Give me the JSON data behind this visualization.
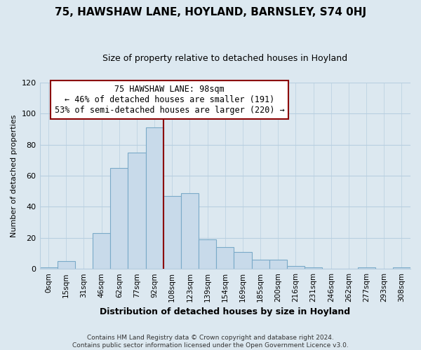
{
  "title": "75, HAWSHAW LANE, HOYLAND, BARNSLEY, S74 0HJ",
  "subtitle": "Size of property relative to detached houses in Hoyland",
  "xlabel": "Distribution of detached houses by size in Hoyland",
  "ylabel": "Number of detached properties",
  "bin_labels": [
    "0sqm",
    "15sqm",
    "31sqm",
    "46sqm",
    "62sqm",
    "77sqm",
    "92sqm",
    "108sqm",
    "123sqm",
    "139sqm",
    "154sqm",
    "169sqm",
    "185sqm",
    "200sqm",
    "216sqm",
    "231sqm",
    "246sqm",
    "262sqm",
    "277sqm",
    "293sqm",
    "308sqm"
  ],
  "bar_heights": [
    1,
    5,
    0,
    23,
    65,
    75,
    91,
    47,
    49,
    19,
    14,
    11,
    6,
    6,
    2,
    1,
    0,
    0,
    1,
    0,
    1
  ],
  "bar_color": "#c8daea",
  "bar_edge_color": "#7aaac8",
  "property_line_label": "75 HAWSHAW LANE: 98sqm",
  "annotation_line1": "← 46% of detached houses are smaller (191)",
  "annotation_line2": "53% of semi-detached houses are larger (220) →",
  "property_line_x": 6.5,
  "ylim": [
    0,
    120
  ],
  "yticks": [
    0,
    20,
    40,
    60,
    80,
    100,
    120
  ],
  "footer_line1": "Contains HM Land Registry data © Crown copyright and database right 2024.",
  "footer_line2": "Contains public sector information licensed under the Open Government Licence v3.0.",
  "bg_color": "#dce8f0",
  "plot_bg_color": "#dce8f0",
  "grid_color": "#b8cfe0",
  "title_fontsize": 11,
  "subtitle_fontsize": 9,
  "ylabel_fontsize": 8,
  "xlabel_fontsize": 9,
  "tick_fontsize": 7.5,
  "annotation_fontsize": 8.5,
  "footer_fontsize": 6.5
}
